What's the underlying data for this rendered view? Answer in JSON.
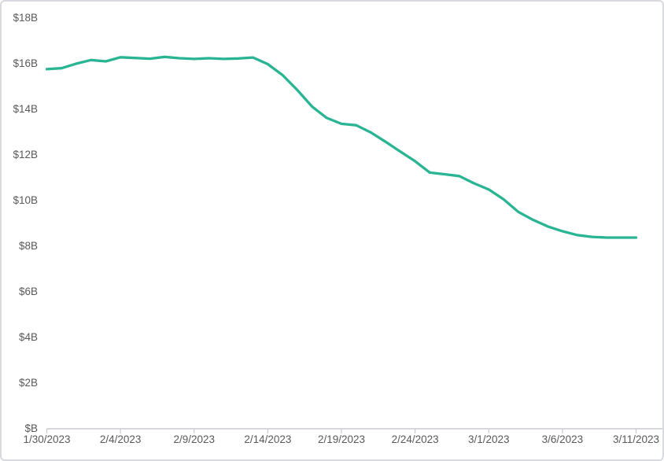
{
  "chart_data": {
    "type": "line",
    "title": "",
    "xlabel": "",
    "ylabel": "",
    "unit": "USD billions",
    "ylim": [
      0,
      18
    ],
    "grid": "off",
    "legend": "none",
    "line_color": "#29B494",
    "axis_color": "#c9c9cf",
    "label_color": "#595959",
    "x": [
      "1/30/2023",
      "1/31/2023",
      "2/1/2023",
      "2/2/2023",
      "2/3/2023",
      "2/4/2023",
      "2/5/2023",
      "2/6/2023",
      "2/7/2023",
      "2/8/2023",
      "2/9/2023",
      "2/10/2023",
      "2/11/2023",
      "2/12/2023",
      "2/13/2023",
      "2/14/2023",
      "2/15/2023",
      "2/16/2023",
      "2/17/2023",
      "2/18/2023",
      "2/19/2023",
      "2/20/2023",
      "2/21/2023",
      "2/22/2023",
      "2/23/2023",
      "2/24/2023",
      "2/25/2023",
      "2/26/2023",
      "2/27/2023",
      "2/28/2023",
      "3/1/2023",
      "3/2/2023",
      "3/3/2023",
      "3/4/2023",
      "3/5/2023",
      "3/6/2023",
      "3/7/2023",
      "3/8/2023",
      "3/9/2023",
      "3/10/2023",
      "3/11/2023"
    ],
    "values": [
      15.76,
      15.8,
      16.0,
      16.16,
      16.1,
      16.28,
      16.25,
      16.22,
      16.3,
      16.24,
      16.21,
      16.24,
      16.21,
      16.23,
      16.27,
      15.98,
      15.5,
      14.85,
      14.12,
      13.62,
      13.36,
      13.3,
      12.98,
      12.57,
      12.14,
      11.72,
      11.22,
      11.15,
      11.07,
      10.75,
      10.48,
      10.05,
      9.5,
      9.15,
      8.86,
      8.65,
      8.48,
      8.4,
      8.37,
      8.37,
      8.37
    ],
    "x_tick_labels": [
      "1/30/2023",
      "2/4/2023",
      "2/9/2023",
      "2/14/2023",
      "2/19/2023",
      "2/24/2023",
      "3/1/2023",
      "3/6/2023",
      "3/11/2023"
    ],
    "y_tick_labels": [
      "$18B",
      "$16B",
      "$14B",
      "$12B",
      "$10B",
      "$8B",
      "$6B",
      "$4B",
      "$2B",
      "$B"
    ],
    "y_tick_values": [
      18,
      16,
      14,
      12,
      10,
      8,
      6,
      4,
      2,
      0
    ]
  }
}
